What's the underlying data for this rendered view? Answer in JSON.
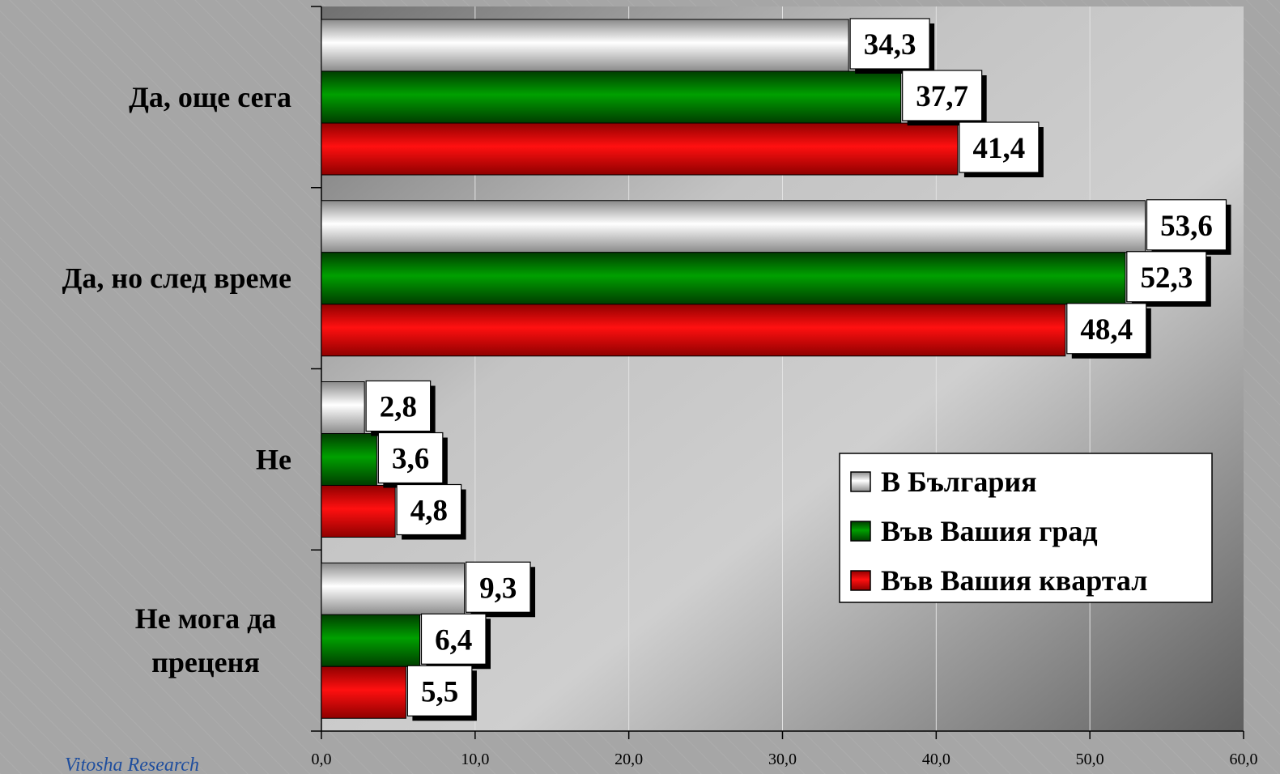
{
  "chart_data": {
    "type": "bar",
    "orientation": "horizontal",
    "categories": [
      "Да, още сега",
      "Да, но след време",
      "Не",
      "Не мога да преценя"
    ],
    "category_lines": [
      [
        "Да, още сега"
      ],
      [
        "Да, но след време"
      ],
      [
        "Не"
      ],
      [
        "Не мога да",
        "преценя"
      ]
    ],
    "series": [
      {
        "name": "В България",
        "values": [
          34.3,
          53.6,
          2.8,
          9.3
        ],
        "labels": [
          "34,3",
          "53,6",
          "2,8",
          "9,3"
        ],
        "color": "#ffffff"
      },
      {
        "name": "Във Вашия град",
        "values": [
          37.7,
          52.3,
          3.6,
          6.4
        ],
        "labels": [
          "37,7",
          "52,3",
          "3,6",
          "6,4"
        ],
        "color": "#008000"
      },
      {
        "name": "Във Вашия квартал",
        "values": [
          41.4,
          48.4,
          4.8,
          5.5
        ],
        "labels": [
          "41,4",
          "48,4",
          "4,8",
          "5,5"
        ],
        "color": "#ff0000"
      }
    ],
    "xlim": [
      0,
      60
    ],
    "xticks": [
      0,
      10,
      20,
      30,
      40,
      50,
      60
    ],
    "xtick_labels": [
      "0,0",
      "10,0",
      "20,0",
      "30,0",
      "40,0",
      "50,0",
      "60,0"
    ],
    "grid": true,
    "legend_position": "bottom-right",
    "title": "",
    "xlabel": "",
    "ylabel": ""
  },
  "footer": {
    "text": "Vitosha Research"
  }
}
